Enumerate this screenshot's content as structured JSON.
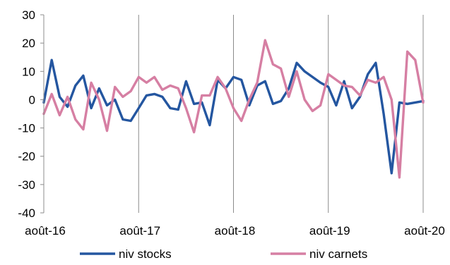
{
  "chart_data": {
    "type": "line",
    "title": "",
    "xlabel": "",
    "ylabel": "",
    "ylim": [
      -40,
      30
    ],
    "yticks": [
      30,
      20,
      10,
      0,
      -10,
      -20,
      -30,
      -40
    ],
    "xtick_labels": [
      "août-16",
      "août-17",
      "août-18",
      "août-19",
      "août-20"
    ],
    "x_start": "2016-08",
    "x_end": "2020-08",
    "grid": "vertical",
    "legend_position": "bottom",
    "x": [
      "2016-08",
      "2016-09",
      "2016-10",
      "2016-11",
      "2016-12",
      "2017-01",
      "2017-02",
      "2017-03",
      "2017-04",
      "2017-05",
      "2017-06",
      "2017-07",
      "2017-08",
      "2017-09",
      "2017-10",
      "2017-11",
      "2017-12",
      "2018-01",
      "2018-02",
      "2018-03",
      "2018-04",
      "2018-05",
      "2018-06",
      "2018-07",
      "2018-08",
      "2018-09",
      "2018-10",
      "2018-11",
      "2018-12",
      "2019-01",
      "2019-02",
      "2019-03",
      "2019-04",
      "2019-05",
      "2019-06",
      "2019-07",
      "2019-08",
      "2019-09",
      "2019-10",
      "2019-11",
      "2019-12",
      "2020-01",
      "2020-02",
      "2020-03",
      "2020-04",
      "2020-05",
      "2020-06",
      "2020-07",
      "2020-08"
    ],
    "series": [
      {
        "name": "niv stocks",
        "color": "#2456a0",
        "values": [
          -1,
          14,
          1,
          -2.5,
          5,
          8.5,
          -3,
          4,
          -2,
          0,
          -7,
          -7.5,
          -3,
          1.5,
          2,
          1,
          -3,
          -3.5,
          6.5,
          -1.5,
          -1,
          -9,
          7,
          4,
          8,
          7,
          -2,
          5,
          6.5,
          -1.5,
          -0.5,
          4,
          13,
          10,
          8,
          6,
          4.5,
          -2,
          6.5,
          -3,
          1,
          9,
          13,
          -5,
          -26,
          -1,
          -1.5,
          -1,
          -0.5
        ]
      },
      {
        "name": "niv carnets",
        "color": "#d67fa3",
        "values": [
          -5,
          2,
          -5.5,
          1,
          -7,
          -10.5,
          6,
          0,
          -11,
          4.5,
          1,
          3,
          8,
          6,
          8,
          3.5,
          5,
          4,
          -3,
          -11.5,
          1.5,
          1.5,
          8,
          4,
          -3,
          -7.5,
          0,
          6,
          21,
          12.5,
          11,
          1,
          10,
          0,
          -4,
          -2,
          9,
          7,
          5,
          4.5,
          1.5,
          7,
          6,
          8,
          0,
          -27.5,
          17,
          14,
          -1
        ]
      }
    ]
  }
}
